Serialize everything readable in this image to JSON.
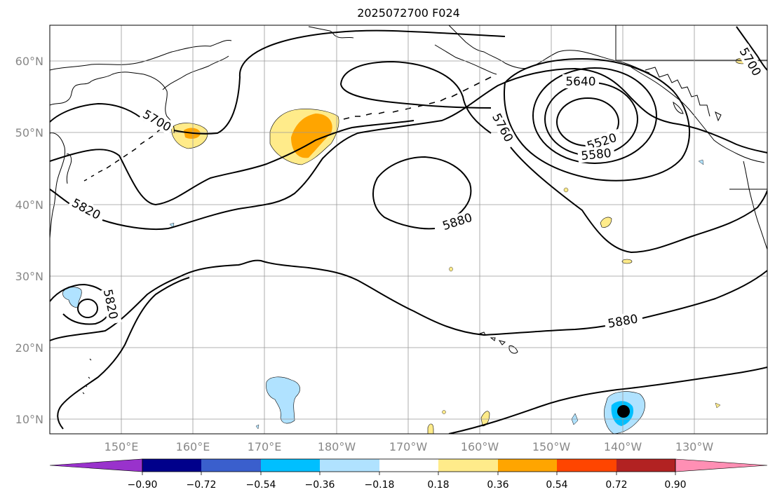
{
  "title": "2025072700 F024",
  "latitude_labels": [
    "10°N",
    "20°N",
    "30°N",
    "40°N",
    "50°N",
    "60°N"
  ],
  "longitude_labels": [
    "150°E",
    "160°E",
    "170°E",
    "180°W",
    "170°W",
    "160°W",
    "150°W",
    "140°W",
    "130°W"
  ],
  "contour_labels": [
    "5700",
    "5760",
    "5640",
    "5520",
    "5580",
    "5820",
    "5880",
    "5820",
    "5880",
    "5700"
  ],
  "colorbar": {
    "ticks": [
      "−0.90",
      "−0.72",
      "−0.54",
      "−0.36",
      "−0.18",
      "0.18",
      "0.36",
      "0.54",
      "0.72",
      "0.90"
    ],
    "colors": [
      "#9932cc",
      "#00008b",
      "#3a5fcd",
      "#00bfff",
      "#b0e2ff",
      "#ffffff",
      "#ffeb8a",
      "#ffa500",
      "#ff4500",
      "#b22222",
      "#ff8fb4"
    ]
  },
  "storm_marker_color": "#000000"
}
